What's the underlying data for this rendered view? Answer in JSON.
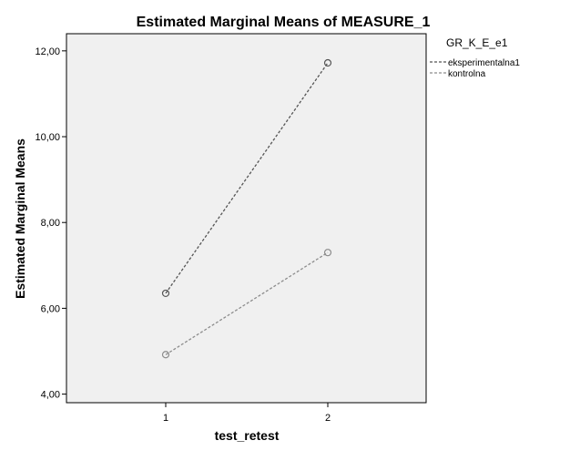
{
  "chart_data": {
    "type": "line",
    "title": "Estimated Marginal Means of MEASURE_1",
    "xlabel": "test_retest",
    "ylabel": "Estimated Marginal Means",
    "categories": [
      "1",
      "2"
    ],
    "ylim": [
      3.8,
      12.4
    ],
    "yticks": [
      4,
      6,
      8,
      10,
      12
    ],
    "ytick_labels": [
      "4,00",
      "6,00",
      "8,00",
      "10,00",
      "12,00"
    ],
    "grid": false,
    "legend_title": "GR_K_E_e1",
    "legend_position": "top-right-outside",
    "series": [
      {
        "name": "eksperimentalna1",
        "values": [
          6.35,
          11.72
        ],
        "color": "#555555"
      },
      {
        "name": "kontrolna",
        "values": [
          4.92,
          7.3
        ],
        "color": "#8c8c8c"
      }
    ],
    "plot_background": "#f0f0f0"
  }
}
